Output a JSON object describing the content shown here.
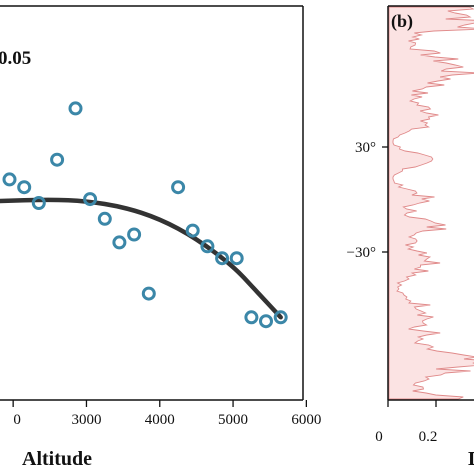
{
  "chart_data": [
    {
      "panel": "a",
      "type": "scatter",
      "annotation": "0.05",
      "xlabel": "Altitude",
      "xticks": [
        "0",
        "3000",
        "4000",
        "5000",
        "6000"
      ],
      "xlim_visible": [
        1800,
        6350
      ],
      "ylim_visible": [
        0,
        1
      ],
      "points": [
        {
          "x": 1950,
          "y": 0.56
        },
        {
          "x": 2150,
          "y": 0.54
        },
        {
          "x": 2350,
          "y": 0.5
        },
        {
          "x": 2600,
          "y": 0.61
        },
        {
          "x": 2850,
          "y": 0.74
        },
        {
          "x": 3050,
          "y": 0.51
        },
        {
          "x": 3250,
          "y": 0.46
        },
        {
          "x": 3450,
          "y": 0.4
        },
        {
          "x": 3650,
          "y": 0.42
        },
        {
          "x": 3850,
          "y": 0.27
        },
        {
          "x": 4250,
          "y": 0.54
        },
        {
          "x": 4450,
          "y": 0.43
        },
        {
          "x": 4650,
          "y": 0.39
        },
        {
          "x": 4850,
          "y": 0.36
        },
        {
          "x": 5050,
          "y": 0.36
        },
        {
          "x": 5250,
          "y": 0.21
        },
        {
          "x": 5450,
          "y": 0.2
        },
        {
          "x": 5650,
          "y": 0.21
        }
      ],
      "fit_curve": [
        {
          "x": 1800,
          "y": 0.505
        },
        {
          "x": 2500,
          "y": 0.509
        },
        {
          "x": 3000,
          "y": 0.505
        },
        {
          "x": 3500,
          "y": 0.49
        },
        {
          "x": 4000,
          "y": 0.46
        },
        {
          "x": 4500,
          "y": 0.41
        },
        {
          "x": 5000,
          "y": 0.34
        },
        {
          "x": 5300,
          "y": 0.28
        },
        {
          "x": 5650,
          "y": 0.21
        }
      ],
      "point_color": "#3b87a8",
      "curve_color": "#333333"
    },
    {
      "panel": "b",
      "type": "area",
      "panel_label": "(b)",
      "yticks": [
        "30°",
        "−30°"
      ],
      "xticks": [
        "0",
        "0.2"
      ],
      "xlabel_partial": "D",
      "fill_color": "#fbe3e3",
      "line_color": "#e08a8a"
    }
  ]
}
